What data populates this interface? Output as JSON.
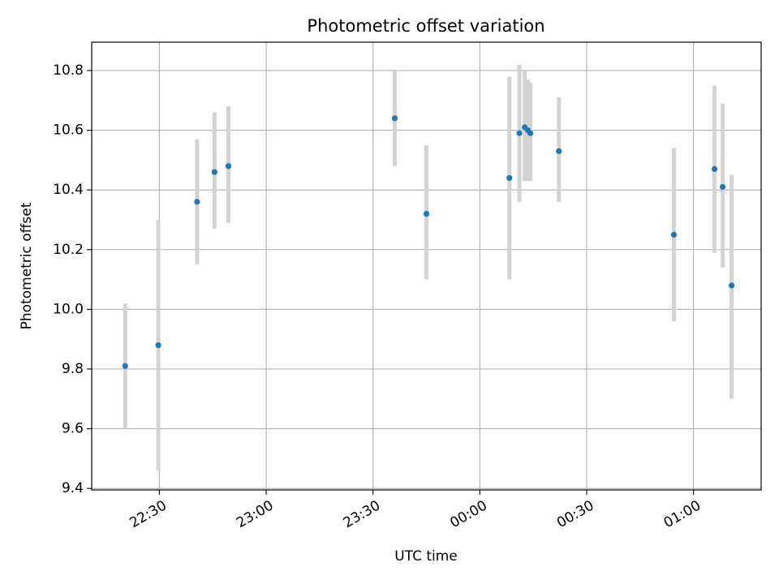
{
  "chart_data": {
    "type": "scatter",
    "title": "Photometric offset variation",
    "xlabel": "UTC time",
    "ylabel": "Photometric offset",
    "grid": true,
    "x_axis_kind": "time",
    "xlim": [
      "22:11",
      "01:19"
    ],
    "ylim": [
      9.395,
      10.895
    ],
    "x_ticks": [
      "22:30",
      "23:00",
      "23:30",
      "00:00",
      "00:30",
      "01:00"
    ],
    "y_ticks": [
      "9.4",
      "9.6",
      "9.8",
      "10.0",
      "10.2",
      "10.4",
      "10.6",
      "10.8"
    ],
    "y_tick_values": [
      9.4,
      9.6,
      9.8,
      10.0,
      10.2,
      10.4,
      10.6,
      10.8
    ],
    "marker_color": "#1f77b4",
    "errorbar_color": "#d3d3d3",
    "points": [
      {
        "x": "22:20:24",
        "y": 9.81,
        "ymin": 9.6,
        "ymax": 10.02
      },
      {
        "x": "22:29:42",
        "y": 9.88,
        "ymin": 9.46,
        "ymax": 10.3
      },
      {
        "x": "22:40:36",
        "y": 10.36,
        "ymin": 10.15,
        "ymax": 10.57
      },
      {
        "x": "22:45:30",
        "y": 10.46,
        "ymin": 10.27,
        "ymax": 10.66
      },
      {
        "x": "22:49:24",
        "y": 10.48,
        "ymin": 10.29,
        "ymax": 10.68
      },
      {
        "x": "23:36:06",
        "y": 10.64,
        "ymin": 10.48,
        "ymax": 10.8
      },
      {
        "x": "23:45:00",
        "y": 10.32,
        "ymin": 10.1,
        "ymax": 10.55
      },
      {
        "x": "00:08:18",
        "y": 10.44,
        "ymin": 10.1,
        "ymax": 10.78
      },
      {
        "x": "00:11:06",
        "y": 10.59,
        "ymin": 10.36,
        "ymax": 10.82
      },
      {
        "x": "00:12:36",
        "y": 10.61,
        "ymin": 10.43,
        "ymax": 10.8
      },
      {
        "x": "00:13:30",
        "y": 10.6,
        "ymin": 10.43,
        "ymax": 10.77
      },
      {
        "x": "00:14:12",
        "y": 10.59,
        "ymin": 10.43,
        "ymax": 10.76
      },
      {
        "x": "00:22:12",
        "y": 10.53,
        "ymin": 10.36,
        "ymax": 10.71
      },
      {
        "x": "00:54:30",
        "y": 10.25,
        "ymin": 9.96,
        "ymax": 10.54
      },
      {
        "x": "01:05:54",
        "y": 10.47,
        "ymin": 10.19,
        "ymax": 10.75
      },
      {
        "x": "01:08:12",
        "y": 10.41,
        "ymin": 10.14,
        "ymax": 10.69
      },
      {
        "x": "01:10:42",
        "y": 10.08,
        "ymin": 9.7,
        "ymax": 10.45
      }
    ]
  }
}
